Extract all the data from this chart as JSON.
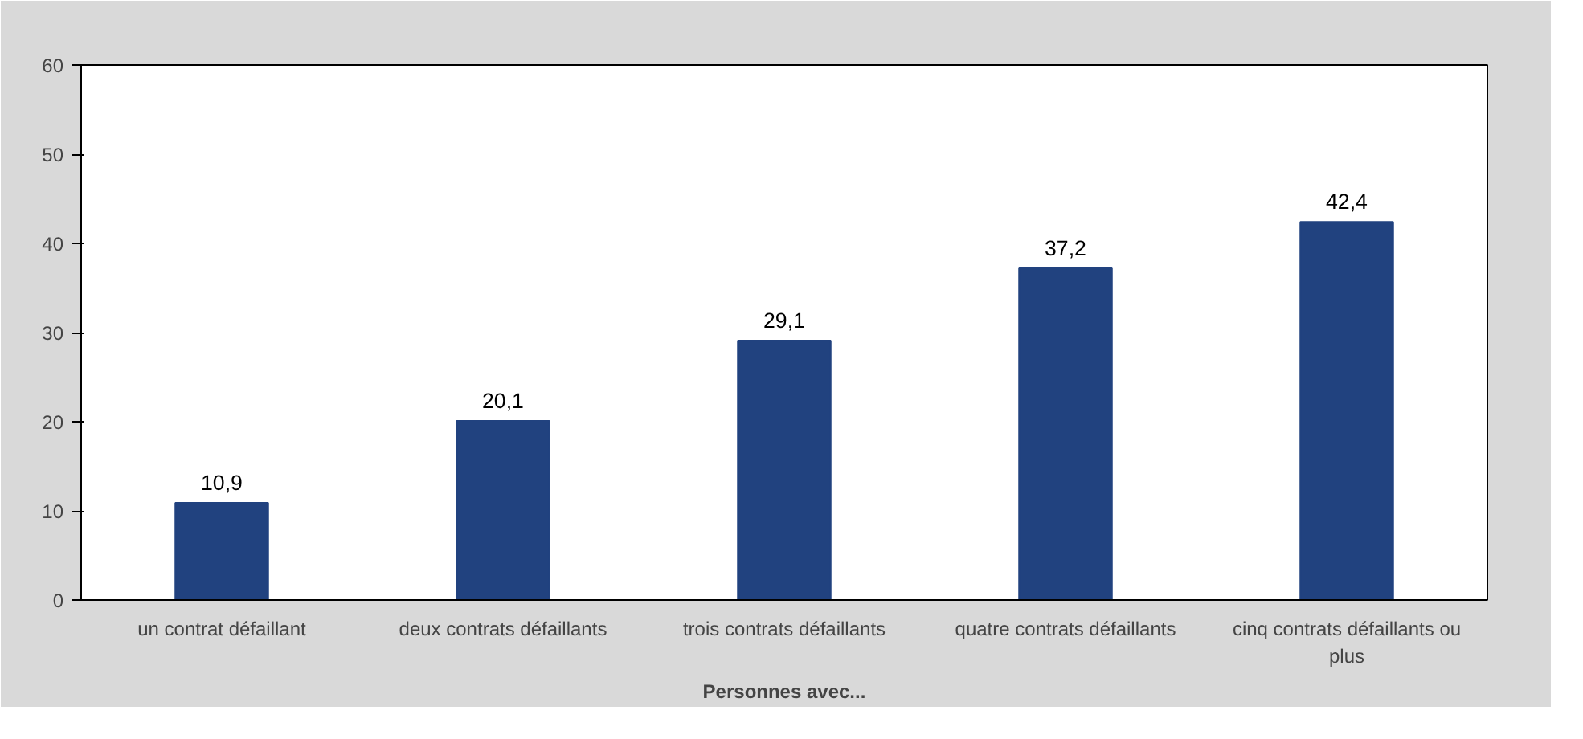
{
  "chart_data": {
    "type": "bar",
    "xlabel": "Personnes avec...",
    "categories": [
      "un contrat défaillant",
      "deux contrats défaillants",
      "trois contrats défaillants",
      "quatre contrats défaillants",
      "cinq contrats défaillants ou plus"
    ],
    "values": [
      10.9,
      20.1,
      29.1,
      37.2,
      42.4
    ],
    "value_labels": [
      "10,9",
      "20,1",
      "29,1",
      "37,2",
      "42,4"
    ],
    "color": "#21427f",
    "ylim": [
      0,
      60
    ],
    "yticks": [
      0,
      10,
      20,
      30,
      40,
      50,
      60
    ],
    "grid": false
  }
}
